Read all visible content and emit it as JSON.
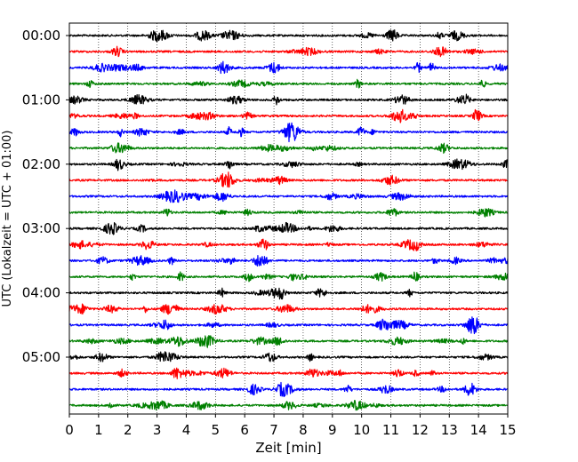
{
  "chart_data": {
    "type": "line",
    "title": "",
    "xlabel": "Zeit  [min]",
    "ylabel": "UTC (Lokalzeit = UTC + 01:00)",
    "xlim": [
      0,
      15
    ],
    "x_ticks": [
      0,
      1,
      2,
      3,
      4,
      5,
      6,
      7,
      8,
      9,
      10,
      11,
      12,
      13,
      14,
      15
    ],
    "x_gridlines": "vertical dotted at each minute",
    "y_tick_labels": [
      "00:00",
      "01:00",
      "02:00",
      "03:00",
      "04:00",
      "05:00"
    ],
    "trace_minutes": 15,
    "trace_count": 24,
    "trace_colors": [
      "#000000",
      "#ff0000",
      "#0000ff",
      "#008000"
    ],
    "traces": [
      {
        "start": "00:00",
        "color": "#000000"
      },
      {
        "start": "00:15",
        "color": "#ff0000"
      },
      {
        "start": "00:30",
        "color": "#0000ff"
      },
      {
        "start": "00:45",
        "color": "#008000"
      },
      {
        "start": "01:00",
        "color": "#000000"
      },
      {
        "start": "01:15",
        "color": "#ff0000"
      },
      {
        "start": "01:30",
        "color": "#0000ff"
      },
      {
        "start": "01:45",
        "color": "#008000"
      },
      {
        "start": "02:00",
        "color": "#000000"
      },
      {
        "start": "02:15",
        "color": "#ff0000"
      },
      {
        "start": "02:30",
        "color": "#0000ff"
      },
      {
        "start": "02:45",
        "color": "#008000"
      },
      {
        "start": "03:00",
        "color": "#000000"
      },
      {
        "start": "03:15",
        "color": "#ff0000"
      },
      {
        "start": "03:30",
        "color": "#0000ff"
      },
      {
        "start": "03:45",
        "color": "#008000"
      },
      {
        "start": "04:00",
        "color": "#000000"
      },
      {
        "start": "04:15",
        "color": "#ff0000"
      },
      {
        "start": "04:30",
        "color": "#0000ff"
      },
      {
        "start": "04:45",
        "color": "#008000"
      },
      {
        "start": "05:00",
        "color": "#000000"
      },
      {
        "start": "05:15",
        "color": "#ff0000"
      },
      {
        "start": "05:30",
        "color": "#0000ff"
      },
      {
        "start": "05:45",
        "color": "#008000"
      }
    ]
  }
}
